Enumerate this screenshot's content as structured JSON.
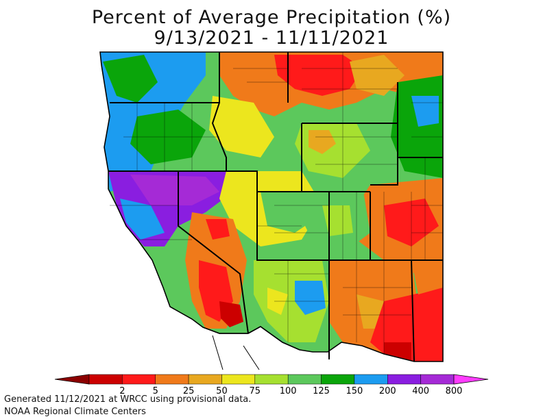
{
  "title": {
    "line1": "Percent of Average Precipitation (%)",
    "line2": "9/13/2021 - 11/11/2021"
  },
  "legend": {
    "bins": [
      {
        "color": "#8b0000"
      },
      {
        "color": "#cc0000"
      },
      {
        "color": "#ff1a1a"
      },
      {
        "color": "#f07a1a"
      },
      {
        "color": "#e8a820"
      },
      {
        "color": "#ece61e"
      },
      {
        "color": "#a6e030"
      },
      {
        "color": "#5cc85c"
      },
      {
        "color": "#0aa50a"
      },
      {
        "color": "#1c9cf0"
      },
      {
        "color": "#8a1ee0"
      },
      {
        "color": "#a52ad6"
      },
      {
        "color": "#ff3cff"
      }
    ],
    "labels": [
      "2",
      "5",
      "25",
      "50",
      "75",
      "100",
      "125",
      "150",
      "200",
      "400",
      "800"
    ]
  },
  "map": {
    "region": "Western United States",
    "dominant_colors": {
      "extreme_above": "#8a1ee0",
      "very_above": "#1c9cf0",
      "above": "#0aa50a",
      "near_above": "#5cc85c",
      "near": "#ece61e",
      "below": "#e8a820",
      "much_below": "#f07a1a",
      "well_below": "#ff1a1a"
    }
  },
  "footer": {
    "line1": "Generated 11/12/2021 at WRCC using provisional data.",
    "line2": "NOAA Regional Climate Centers"
  }
}
